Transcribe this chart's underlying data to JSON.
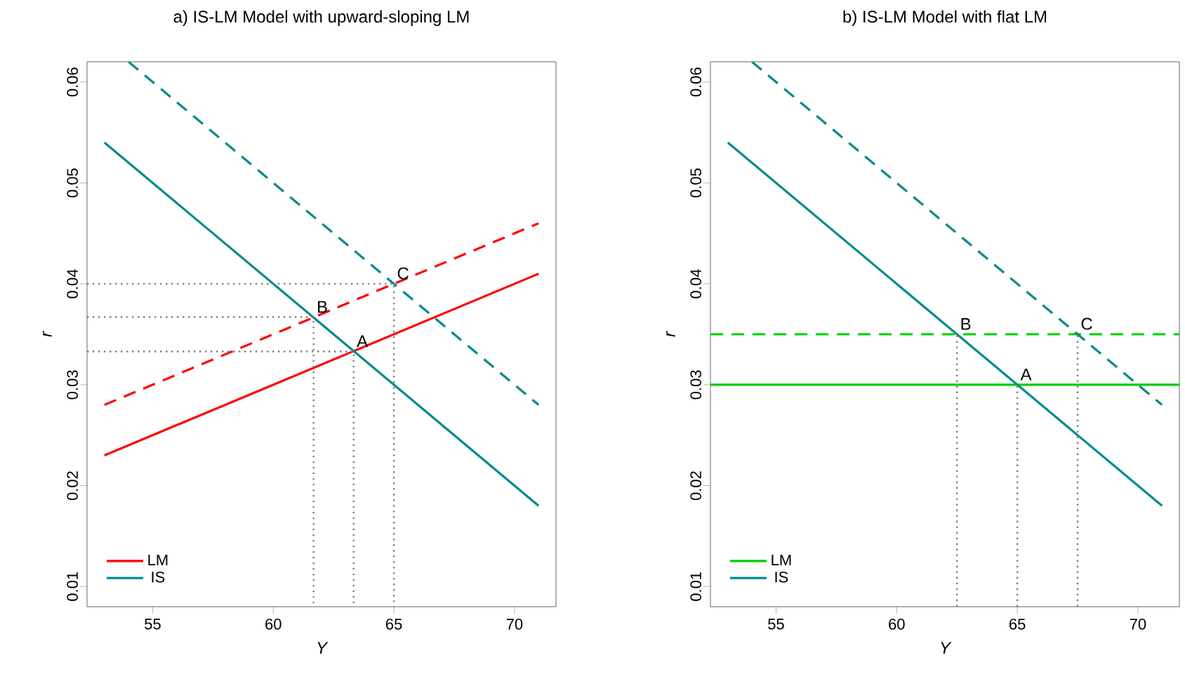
{
  "chart_data": [
    {
      "type": "line",
      "title": "a) IS-LM Model with upward-sloping LM",
      "xlabel": "Y",
      "ylabel": "r",
      "xlim": [
        52.28,
        71.72
      ],
      "ylim": [
        0.008,
        0.062
      ],
      "xticks": [
        55,
        60,
        65,
        70
      ],
      "yticks": [
        0.01,
        0.02,
        0.03,
        0.04,
        0.05,
        0.06
      ],
      "legend": "bottom left",
      "series": [
        {
          "name": "LM",
          "color": "#ff0000",
          "x": [
            53,
            71
          ],
          "values": [
            0.023,
            0.041
          ]
        },
        {
          "name": "IS",
          "color": "#008b8b",
          "x": [
            53,
            71
          ],
          "values": [
            0.054,
            0.018
          ]
        },
        {
          "color": "#ff0000",
          "x": [
            53,
            71
          ],
          "values": [
            0.028,
            0.046
          ],
          "line_style": "dashed"
        },
        {
          "color": "#008b8b",
          "x": [
            54,
            71
          ],
          "values": [
            0.062,
            0.028
          ],
          "line_style": "dashed"
        },
        {
          "color": "#808080",
          "x": [
            52.28,
            63.33,
            63.33
          ],
          "values": [
            0.0333,
            0.0333,
            0.008
          ],
          "line_style": "dotted"
        },
        {
          "color": "#808080",
          "x": [
            52.28,
            61.67,
            61.67
          ],
          "values": [
            0.0367,
            0.0367,
            0.008
          ],
          "line_style": "dotted"
        },
        {
          "color": "#808080",
          "x": [
            52.28,
            65,
            65
          ],
          "values": [
            0.04,
            0.04,
            0.008
          ],
          "line_style": "dotted"
        }
      ],
      "annotations": [
        {
          "text": "A",
          "x": 63.33,
          "y": 0.0333
        },
        {
          "text": "B",
          "x": 61.67,
          "y": 0.0367
        },
        {
          "text": "C",
          "x": 65,
          "y": 0.04
        }
      ]
    },
    {
      "type": "line",
      "title": "b) IS-LM Model with flat LM",
      "xlabel": "Y",
      "ylabel": "r",
      "xlim": [
        52.28,
        71.72
      ],
      "ylim": [
        0.008,
        0.062
      ],
      "xticks": [
        55,
        60,
        65,
        70
      ],
      "yticks": [
        0.01,
        0.02,
        0.03,
        0.04,
        0.05,
        0.06
      ],
      "legend": "bottom left",
      "series": [
        {
          "name": "LM",
          "color": "#00cd00",
          "x": [
            52.28,
            71.72
          ],
          "values": [
            0.03,
            0.03
          ]
        },
        {
          "name": "IS",
          "color": "#008b8b",
          "x": [
            53,
            71
          ],
          "values": [
            0.054,
            0.018
          ]
        },
        {
          "color": "#00cd00",
          "x": [
            52.28,
            71.72
          ],
          "values": [
            0.035,
            0.035
          ],
          "line_style": "dashed"
        },
        {
          "color": "#008b8b",
          "x": [
            54,
            71
          ],
          "values": [
            0.062,
            0.028
          ],
          "line_style": "dashed"
        },
        {
          "color": "#808080",
          "x": [
            65,
            65
          ],
          "values": [
            0.008,
            0.03
          ],
          "line_style": "dotted"
        },
        {
          "color": "#808080",
          "x": [
            62.5,
            62.5
          ],
          "values": [
            0.008,
            0.035
          ],
          "line_style": "dotted"
        },
        {
          "color": "#808080",
          "x": [
            67.5,
            67.5
          ],
          "values": [
            0.008,
            0.035
          ],
          "line_style": "dotted"
        }
      ],
      "annotations": [
        {
          "text": "A",
          "x": 65,
          "y": 0.03
        },
        {
          "text": "B",
          "x": 62.5,
          "y": 0.035
        },
        {
          "text": "C",
          "x": 67.5,
          "y": 0.035
        }
      ]
    }
  ]
}
